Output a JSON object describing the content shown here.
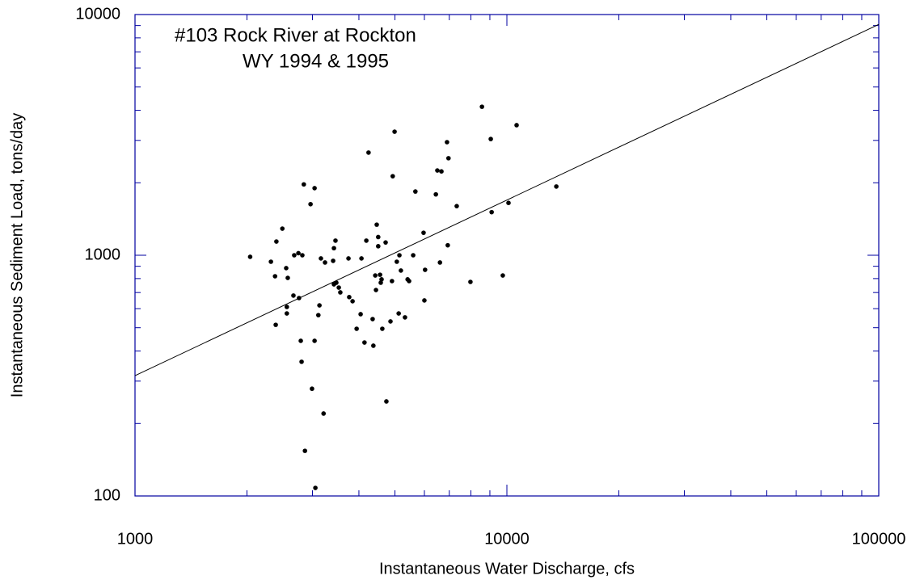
{
  "chart_data": {
    "type": "scatter",
    "title": "#103  Rock River at Rockton",
    "subtitle": "WY 1994 & 1995",
    "x_label": "Instantaneous Water Discharge, cfs",
    "y_label": "Instantaneous Sediment Load, tons/day",
    "xscale": "log",
    "yscale": "log",
    "xlim": [
      1000,
      100000
    ],
    "ylim": [
      100,
      10000
    ],
    "xticks": [
      1000,
      10000,
      100000
    ],
    "yticks": [
      100,
      1000,
      10000
    ],
    "xminorticks": [
      2000,
      3000,
      4000,
      5000,
      6000,
      7000,
      8000,
      9000,
      20000,
      30000,
      40000,
      50000,
      60000,
      70000,
      80000,
      90000
    ],
    "yminorticks": [
      200,
      300,
      400,
      500,
      600,
      700,
      800,
      900,
      2000,
      3000,
      4000,
      5000,
      6000,
      7000,
      8000,
      9000
    ],
    "axis_color": "#0000a0",
    "series": [
      {
        "type": "scatter",
        "color": "#000000",
        "x": [
          2844,
          3040,
          2965,
          2040,
          2320,
          2400,
          2490,
          2380,
          2550,
          2575,
          2560,
          2560,
          2390,
          2667,
          2680,
          2750,
          2818,
          2761,
          2791,
          2805,
          3040,
          2992,
          3055,
          2864,
          3214,
          3133,
          3112,
          3162,
          3243,
          3410,
          3427,
          3460,
          3427,
          3478,
          3532,
          3565,
          3750,
          3767,
          3846,
          3944,
          4043,
          4064,
          4141,
          4188,
          4246,
          4355,
          4375,
          4446,
          4426,
          4467,
          4508,
          4508,
          4560,
          4580,
          4603,
          4624,
          4720,
          4742,
          4864,
          4909,
          4932,
          4989,
          5058,
          5117,
          5140,
          5188,
          5408,
          5458,
          5321,
          5598,
          5675,
          5970,
          6000,
          6026,
          6442,
          6501,
          6668,
          6607,
          6902,
          6966,
          6934,
          7330,
          7980,
          8570,
          9050,
          9100,
          9750,
          10100,
          10620,
          13580
        ],
        "values": [
          1970,
          1900,
          1630,
          985,
          940,
          1140,
          1290,
          818,
          884,
          805,
          610,
          573,
          514,
          680,
          1000,
          1020,
          1000,
          664,
          441,
          361,
          441,
          279,
          108,
          154,
          220,
          619,
          564,
          970,
          933,
          948,
          1070,
          1150,
          757,
          769,
          734,
          701,
          970,
          670,
          644,
          495,
          569,
          970,
          434,
          1150,
          2670,
          543,
          421,
          717,
          824,
          1340,
          1190,
          1090,
          830,
          769,
          794,
          495,
          1130,
          247,
          531,
          781,
          2130,
          3260,
          940,
          573,
          1000,
          864,
          794,
          781,
          552,
          1000,
          1840,
          1240,
          649,
          870,
          1790,
          2250,
          2230,
          933,
          2950,
          2530,
          1100,
          1600,
          775,
          4140,
          3040,
          1510,
          824,
          1650,
          3470,
          1930
        ]
      },
      {
        "type": "line",
        "color": "#000000",
        "x": [
          1000,
          100000
        ],
        "values": [
          316,
          9100
        ]
      }
    ]
  }
}
